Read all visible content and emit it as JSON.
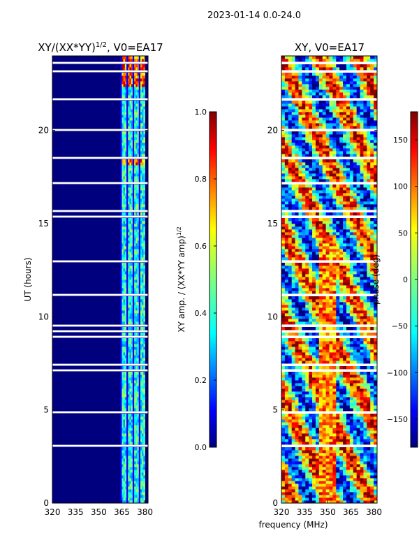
{
  "figure": {
    "suptitle": "2023-01-14 0.0-24.0",
    "shared_xlabel": "frequency (MHz)"
  },
  "chart_data": [
    {
      "type": "heatmap",
      "title": "XY/(XX*YY)",
      "title_sup": "1/2",
      "title_suffix": ", V0=EA17",
      "ylabel": "UT (hours)",
      "xlim": [
        320,
        382
      ],
      "ylim": [
        0,
        24
      ],
      "xticks": [
        320,
        335,
        350,
        365,
        380
      ],
      "yticks": [
        0,
        5,
        10,
        15,
        20
      ],
      "colorbar": {
        "label": "XY amp. / (XX*YY amp)",
        "label_sup": "1/2",
        "range": [
          0.0,
          1.0
        ],
        "ticks": [
          "0.0",
          "0.2",
          "0.4",
          "0.6",
          "0.8",
          "1.0"
        ],
        "cmap": "jet"
      },
      "active_band_mhz": [
        364,
        380
      ],
      "background_value": 0.0
    },
    {
      "type": "heatmap",
      "title": "XY, V0=EA17",
      "ylabel": "",
      "xlim": [
        320,
        382
      ],
      "ylim": [
        0,
        24
      ],
      "xticks": [
        320,
        335,
        350,
        365,
        380
      ],
      "yticks": [
        0,
        5,
        10,
        15,
        20
      ],
      "colorbar": {
        "label": "phase (deg)",
        "range": [
          -180,
          180
        ],
        "ticks": [
          "−150",
          "−100",
          "−50",
          "0",
          "50",
          "100",
          "150"
        ],
        "cmap": "jet"
      }
    }
  ],
  "colors": {
    "jet": [
      "#00007f",
      "#0000ff",
      "#007fff",
      "#00ffff",
      "#7fff7f",
      "#ffff00",
      "#ff7f00",
      "#ff0000",
      "#7f0000"
    ],
    "background": "#ffffff",
    "axis": "#000000"
  }
}
